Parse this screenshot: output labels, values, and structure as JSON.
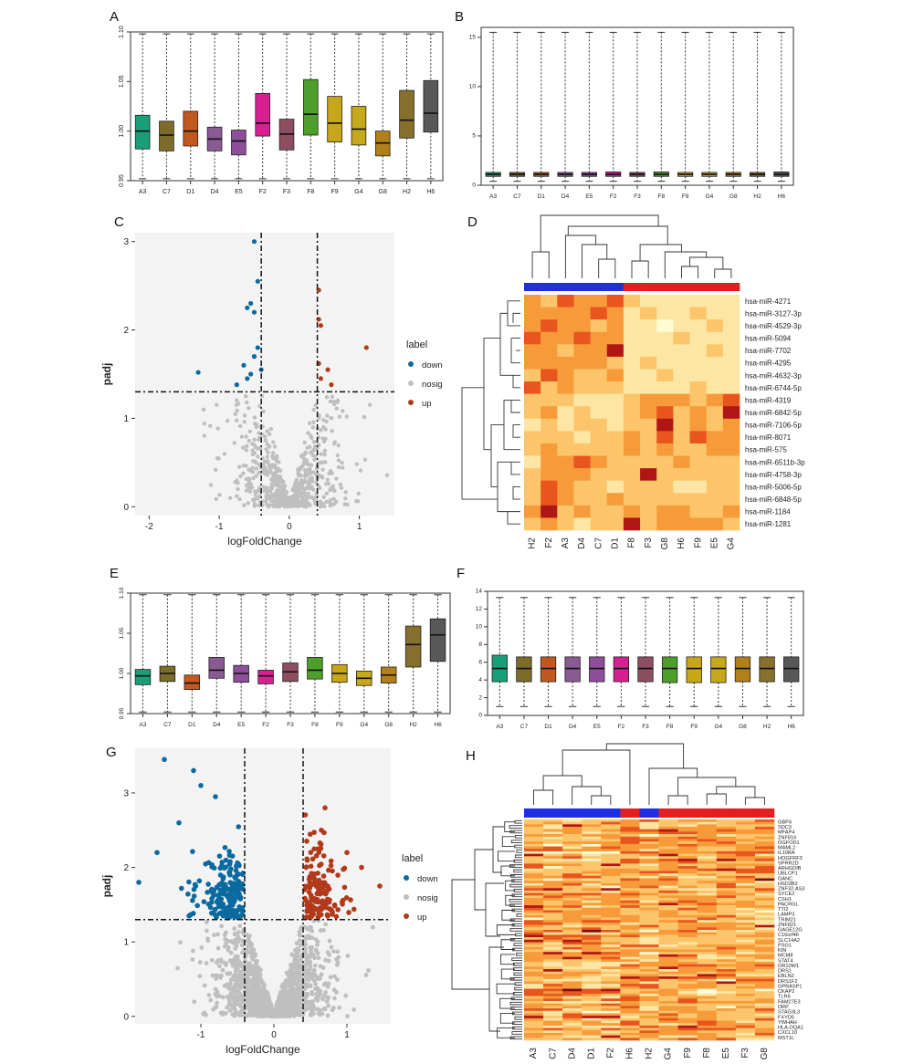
{
  "panel_letters": [
    "A",
    "B",
    "C",
    "D",
    "E",
    "F",
    "G",
    "H"
  ],
  "samples": [
    "A3",
    "C7",
    "D1",
    "D4",
    "E5",
    "F2",
    "F3",
    "F8",
    "F9",
    "G4",
    "G8",
    "H2",
    "H6"
  ],
  "box_colors": [
    "#1a9e77",
    "#7d6b2a",
    "#c1581f",
    "#8a5a93",
    "#8e4e9b",
    "#d81f91",
    "#8e4e62",
    "#4e9e2b",
    "#c8a619",
    "#c5a81b",
    "#b2801a",
    "#86702c",
    "#585858"
  ],
  "chart_data": [
    {
      "panel": "A",
      "type": "box",
      "categories": [
        "A3",
        "C7",
        "D1",
        "D4",
        "E5",
        "F2",
        "F3",
        "F8",
        "F9",
        "G4",
        "G8",
        "H2",
        "H6"
      ],
      "ylim": [
        0.95,
        1.1
      ],
      "yticks": [
        "0.95",
        "1.00",
        "1.05",
        "1.10"
      ],
      "boxes": [
        {
          "q1": 0.982,
          "median": 1.0,
          "q3": 1.016
        },
        {
          "q1": 0.98,
          "median": 0.996,
          "q3": 1.01
        },
        {
          "q1": 0.985,
          "median": 1.0,
          "q3": 1.02
        },
        {
          "q1": 0.98,
          "median": 0.992,
          "q3": 1.004
        },
        {
          "q1": 0.976,
          "median": 0.99,
          "q3": 1.001
        },
        {
          "q1": 0.995,
          "median": 1.008,
          "q3": 1.038
        },
        {
          "q1": 0.981,
          "median": 0.997,
          "q3": 1.012
        },
        {
          "q1": 0.996,
          "median": 1.017,
          "q3": 1.052
        },
        {
          "q1": 0.989,
          "median": 1.008,
          "q3": 1.035
        },
        {
          "q1": 0.986,
          "median": 1.002,
          "q3": 1.025
        },
        {
          "q1": 0.975,
          "median": 0.988,
          "q3": 1.0
        },
        {
          "q1": 0.993,
          "median": 1.011,
          "q3": 1.041
        },
        {
          "q1": 0.999,
          "median": 1.018,
          "q3": 1.051
        }
      ],
      "whisker_low": 0.952,
      "whisker_high": 1.098
    },
    {
      "panel": "B",
      "type": "box",
      "categories": [
        "A3",
        "C7",
        "D1",
        "D4",
        "E5",
        "F2",
        "F3",
        "F8",
        "F9",
        "G4",
        "G8",
        "H2",
        "H6"
      ],
      "ylim": [
        0,
        16
      ],
      "yticks": [
        "0",
        "5",
        "10",
        "15"
      ],
      "boxes": [
        {
          "q1": 0.9,
          "median": 1.1,
          "q3": 1.3
        },
        {
          "q1": 0.9,
          "median": 1.1,
          "q3": 1.3
        },
        {
          "q1": 0.9,
          "median": 1.1,
          "q3": 1.3
        },
        {
          "q1": 0.9,
          "median": 1.1,
          "q3": 1.3
        },
        {
          "q1": 0.9,
          "median": 1.1,
          "q3": 1.3
        },
        {
          "q1": 0.9,
          "median": 1.1,
          "q3": 1.35
        },
        {
          "q1": 0.9,
          "median": 1.1,
          "q3": 1.3
        },
        {
          "q1": 0.9,
          "median": 1.1,
          "q3": 1.35
        },
        {
          "q1": 0.9,
          "median": 1.1,
          "q3": 1.3
        },
        {
          "q1": 0.9,
          "median": 1.1,
          "q3": 1.3
        },
        {
          "q1": 0.9,
          "median": 1.1,
          "q3": 1.3
        },
        {
          "q1": 0.9,
          "median": 1.1,
          "q3": 1.3
        },
        {
          "q1": 0.9,
          "median": 1.1,
          "q3": 1.35
        }
      ],
      "whisker_low": 0.4,
      "whisker_high": 15.5
    },
    {
      "panel": "C",
      "type": "scatter",
      "xlabel": "logFoldChange",
      "ylabel": "padj",
      "xlim": [
        -2.2,
        1.5
      ],
      "ylim": [
        -0.1,
        3.1
      ],
      "xticks": [
        "-2",
        "-1",
        "0",
        "1"
      ],
      "yticks": [
        "0",
        "1",
        "2",
        "3"
      ],
      "vlines": [
        -0.4,
        0.4
      ],
      "hline": 1.3,
      "legend_title": "label",
      "legend": [
        "down",
        "nosig",
        "up"
      ],
      "down_points": [
        [
          -0.5,
          3.0
        ],
        [
          -0.45,
          2.55
        ],
        [
          -0.55,
          2.3
        ],
        [
          -0.5,
          2.2
        ],
        [
          -0.6,
          2.25
        ],
        [
          -0.45,
          1.8
        ],
        [
          -0.5,
          1.7
        ],
        [
          -0.4,
          1.55
        ],
        [
          -0.55,
          1.5
        ],
        [
          -1.3,
          1.52
        ],
        [
          -0.6,
          1.45
        ],
        [
          -0.75,
          1.38
        ],
        [
          -0.65,
          1.6
        ]
      ],
      "up_points": [
        [
          0.42,
          2.45
        ],
        [
          0.45,
          2.05
        ],
        [
          0.42,
          2.12
        ],
        [
          1.1,
          1.8
        ],
        [
          0.55,
          1.55
        ],
        [
          0.45,
          1.45
        ],
        [
          0.6,
          1.38
        ],
        [
          0.42,
          1.62
        ]
      ],
      "nosig_seed": 7,
      "nosig_count": 620
    },
    {
      "panel": "D",
      "type": "heatmap",
      "columns": [
        "H2",
        "F2",
        "A3",
        "D4",
        "C7",
        "D1",
        "F8",
        "F3",
        "G8",
        "H6",
        "F9",
        "E5",
        "G4"
      ],
      "group_colors": [
        "#1f2fe0",
        "#1f2fe0",
        "#1f2fe0",
        "#1f2fe0",
        "#1f2fe0",
        "#1f2fe0",
        "#e01f1f",
        "#e01f1f",
        "#e01f1f",
        "#e01f1f",
        "#e01f1f",
        "#e01f1f",
        "#e01f1f"
      ],
      "rows": [
        "hsa-miR-4271",
        "hsa-miR-3127-3p",
        "hsa-miR-4529-3p",
        "hsa-miR-5094",
        "hsa-miR-7702",
        "hsa-miR-4295",
        "hsa-miR-4632-3p",
        "hsa-miR-6744-5p",
        "hsa-miR-4319",
        "hsa-miR-6842-5p",
        "hsa-miR-7106-5p",
        "hsa-miR-8071",
        "hsa-miR-575",
        "hsa-miR-6511b-3p",
        "hsa-miR-4758-3p",
        "hsa-miR-5006-5p",
        "hsa-miR-6848-5p",
        "hsa-miR-1184",
        "hsa-miR-1281"
      ],
      "values": [
        [
          3,
          2,
          4,
          3,
          3,
          4,
          2,
          1,
          1,
          1,
          1,
          1,
          1
        ],
        [
          3,
          3,
          3,
          3,
          4,
          3,
          1,
          2,
          1,
          1,
          2,
          1,
          1
        ],
        [
          3,
          4,
          3,
          3,
          2,
          3,
          1,
          1,
          0,
          1,
          1,
          2,
          1
        ],
        [
          4,
          3,
          3,
          4,
          3,
          3,
          1,
          1,
          1,
          2,
          1,
          1,
          1
        ],
        [
          3,
          3,
          2,
          3,
          3,
          5,
          1,
          1,
          1,
          1,
          1,
          2,
          1
        ],
        [
          3,
          3,
          3,
          3,
          3,
          2,
          1,
          2,
          1,
          1,
          1,
          1,
          1
        ],
        [
          2,
          4,
          3,
          2,
          2,
          3,
          1,
          1,
          2,
          1,
          1,
          1,
          1
        ],
        [
          4,
          2,
          3,
          2,
          2,
          2,
          1,
          1,
          1,
          1,
          2,
          1,
          1
        ],
        [
          2,
          2,
          2,
          1,
          1,
          1,
          2,
          3,
          3,
          3,
          2,
          3,
          4
        ],
        [
          2,
          3,
          1,
          2,
          1,
          1,
          2,
          3,
          4,
          2,
          3,
          2,
          5
        ],
        [
          1,
          2,
          1,
          2,
          2,
          1,
          2,
          2,
          5,
          2,
          3,
          2,
          3
        ],
        [
          2,
          2,
          2,
          1,
          2,
          2,
          3,
          2,
          4,
          2,
          4,
          3,
          3
        ],
        [
          2,
          3,
          2,
          2,
          2,
          2,
          3,
          2,
          3,
          2,
          2,
          3,
          3
        ],
        [
          1,
          3,
          3,
          4,
          3,
          2,
          2,
          2,
          2,
          3,
          2,
          2,
          2
        ],
        [
          2,
          3,
          3,
          3,
          2,
          2,
          2,
          5,
          2,
          2,
          2,
          2,
          2
        ],
        [
          2,
          4,
          3,
          2,
          2,
          1,
          2,
          2,
          2,
          1,
          1,
          2,
          2
        ],
        [
          2,
          4,
          3,
          2,
          2,
          3,
          2,
          2,
          2,
          2,
          2,
          2,
          2
        ],
        [
          3,
          5,
          2,
          3,
          2,
          2,
          3,
          2,
          3,
          3,
          2,
          2,
          3
        ],
        [
          2,
          3,
          2,
          1,
          2,
          2,
          5,
          2,
          3,
          3,
          3,
          3,
          2
        ]
      ]
    },
    {
      "panel": "E",
      "type": "box",
      "categories": [
        "A3",
        "C7",
        "D1",
        "D4",
        "E5",
        "F2",
        "F3",
        "F8",
        "F9",
        "G4",
        "G8",
        "H2",
        "H6"
      ],
      "ylim": [
        0.95,
        1.1
      ],
      "yticks": [
        "0.95",
        "1.00",
        "1.05",
        "1.10"
      ],
      "boxes": [
        {
          "q1": 0.986,
          "median": 0.997,
          "q3": 1.005
        },
        {
          "q1": 0.99,
          "median": 1.0,
          "q3": 1.009
        },
        {
          "q1": 0.98,
          "median": 0.988,
          "q3": 0.998
        },
        {
          "q1": 0.994,
          "median": 1.004,
          "q3": 1.02
        },
        {
          "q1": 0.989,
          "median": 1.0,
          "q3": 1.01
        },
        {
          "q1": 0.987,
          "median": 0.997,
          "q3": 1.004
        },
        {
          "q1": 0.99,
          "median": 1.002,
          "q3": 1.013
        },
        {
          "q1": 0.993,
          "median": 1.004,
          "q3": 1.02
        },
        {
          "q1": 0.989,
          "median": 1.0,
          "q3": 1.011
        },
        {
          "q1": 0.985,
          "median": 0.994,
          "q3": 1.003
        },
        {
          "q1": 0.988,
          "median": 0.998,
          "q3": 1.008
        },
        {
          "q1": 1.008,
          "median": 1.036,
          "q3": 1.059
        },
        {
          "q1": 1.015,
          "median": 1.048,
          "q3": 1.068
        }
      ],
      "whisker_low": 0.952,
      "whisker_high": 1.098
    },
    {
      "panel": "F",
      "type": "box",
      "categories": [
        "A3",
        "C7",
        "D1",
        "D4",
        "E5",
        "F2",
        "F3",
        "F8",
        "F9",
        "G4",
        "G8",
        "H2",
        "H6"
      ],
      "ylim": [
        0,
        14
      ],
      "yticks": [
        "0",
        "2",
        "4",
        "6",
        "8",
        "10",
        "12",
        "14"
      ],
      "boxes": [
        {
          "q1": 3.8,
          "median": 5.3,
          "q3": 6.8
        },
        {
          "q1": 3.8,
          "median": 5.3,
          "q3": 6.6
        },
        {
          "q1": 3.8,
          "median": 5.3,
          "q3": 6.6
        },
        {
          "q1": 3.8,
          "median": 5.3,
          "q3": 6.6
        },
        {
          "q1": 3.8,
          "median": 5.3,
          "q3": 6.6
        },
        {
          "q1": 3.8,
          "median": 5.3,
          "q3": 6.6
        },
        {
          "q1": 3.8,
          "median": 5.3,
          "q3": 6.6
        },
        {
          "q1": 3.7,
          "median": 5.3,
          "q3": 6.6
        },
        {
          "q1": 3.7,
          "median": 5.3,
          "q3": 6.6
        },
        {
          "q1": 3.7,
          "median": 5.3,
          "q3": 6.6
        },
        {
          "q1": 3.8,
          "median": 5.3,
          "q3": 6.6
        },
        {
          "q1": 3.8,
          "median": 5.3,
          "q3": 6.6
        },
        {
          "q1": 3.8,
          "median": 5.3,
          "q3": 6.6
        }
      ],
      "whisker_low": 1.0,
      "whisker_high": 13.3
    },
    {
      "panel": "G",
      "type": "scatter",
      "xlabel": "logFoldChange",
      "ylabel": "padj",
      "xlim": [
        -1.9,
        1.6
      ],
      "ylim": [
        -0.1,
        3.6
      ],
      "xticks": [
        "-1",
        "0",
        "1"
      ],
      "yticks": [
        "0",
        "1",
        "2",
        "3"
      ],
      "vlines": [
        -0.4,
        0.4
      ],
      "hline": 1.3,
      "legend_title": "label",
      "legend": [
        "down",
        "nosig",
        "up"
      ],
      "down_seed": 11,
      "down_count": 190,
      "up_seed": 23,
      "up_count": 150,
      "down_outliers": [
        [
          -1.85,
          1.8
        ],
        [
          -1.5,
          3.45
        ],
        [
          -1.1,
          3.3
        ],
        [
          -1.0,
          3.1
        ],
        [
          -1.3,
          2.6
        ],
        [
          -0.8,
          2.95
        ],
        [
          -1.6,
          2.2
        ]
      ],
      "up_outliers": [
        [
          1.45,
          1.75
        ],
        [
          1.0,
          2.2
        ],
        [
          1.2,
          2.0
        ],
        [
          0.7,
          2.8
        ],
        [
          0.65,
          2.5
        ]
      ],
      "nosig_seed": 5,
      "nosig_count": 1500
    },
    {
      "panel": "H",
      "type": "heatmap",
      "columns": [
        "A3",
        "C7",
        "D4",
        "D1",
        "F2",
        "H6",
        "H2",
        "G4",
        "F9",
        "F8",
        "E5",
        "F3",
        "G8"
      ],
      "group_colors": [
        "#1f2fe0",
        "#1f2fe0",
        "#1f2fe0",
        "#1f2fe0",
        "#1f2fe0",
        "#e01f1f",
        "#1f2fe0",
        "#e01f1f",
        "#e01f1f",
        "#e01f1f",
        "#e01f1f",
        "#e01f1f",
        "#e01f1f"
      ],
      "rows": [
        "GBP4",
        "SDC3",
        "MFAP4",
        "ZNF816",
        "OGFOD1",
        "MAML2",
        "IL10RA",
        "HOGFRF3",
        "SPRR2D",
        "ARHGDIB",
        "UBLCP1",
        "GANC",
        "HSD3B2",
        "ZNF32-AS3",
        "SYCE2",
        "CSH1",
        "PACRGL",
        "TTI2",
        "LAMP3",
        "TRIM21",
        "ZNF821",
        "GAGE12G",
        "C16orf46",
        "SLC14A2",
        "PSG1",
        "KIN",
        "MCM8",
        "STAT4",
        "OR10W1",
        "DRS1",
        "EBLN2",
        "DRS1F2",
        "GPRASP1",
        "CKAP2",
        "TLR6",
        "FAM27E3",
        "DRP",
        "STAG3L3",
        "FXYD5",
        "YWHAH",
        "HLA-DQA1",
        "CXCL10",
        "MST1L"
      ],
      "band_rows": 90,
      "seed": 3
    }
  ]
}
